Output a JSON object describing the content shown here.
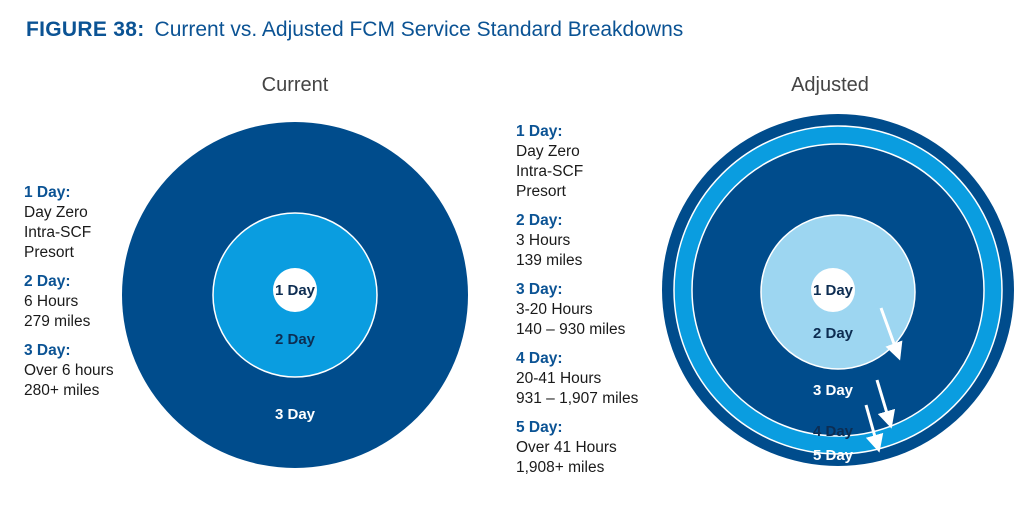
{
  "figure": {
    "number": "FIGURE 38:",
    "title": "Current vs. Adjusted FCM Service Standard Breakdowns"
  },
  "panels": {
    "current": {
      "heading": "Current",
      "rings": [
        "1 Day",
        "2 Day",
        "3 Day"
      ],
      "legend": [
        {
          "label": "1 Day:",
          "lines": [
            "Day Zero",
            "Intra-SCF",
            "Presort"
          ]
        },
        {
          "label": "2 Day:",
          "lines": [
            "6 Hours",
            "279 miles"
          ]
        },
        {
          "label": "3 Day:",
          "lines": [
            "Over 6 hours",
            "280+ miles"
          ]
        }
      ]
    },
    "adjusted": {
      "heading": "Adjusted",
      "rings": [
        "1 Day",
        "2 Day",
        "3 Day",
        "4 Day",
        "5 Day"
      ],
      "legend": [
        {
          "label": "1 Day:",
          "lines": [
            "Day Zero",
            "Intra-SCF",
            "Presort"
          ]
        },
        {
          "label": "2 Day:",
          "lines": [
            "3 Hours",
            "139 miles"
          ]
        },
        {
          "label": "3 Day:",
          "lines": [
            "3-20 Hours",
            "140 – 930 miles"
          ]
        },
        {
          "label": "4 Day:",
          "lines": [
            "20-41 Hours",
            "931 – 1,907 miles"
          ]
        },
        {
          "label": "5 Day:",
          "lines": [
            "Over 41 Hours",
            "1,908+ miles"
          ]
        }
      ]
    }
  },
  "colors": {
    "title": "#0b5394",
    "navy": "#004c8c",
    "mid_blue": "#0a9de0",
    "light_blue": "#9dd6f1",
    "white": "#ffffff"
  },
  "icons": [
    "arrow-icon"
  ]
}
